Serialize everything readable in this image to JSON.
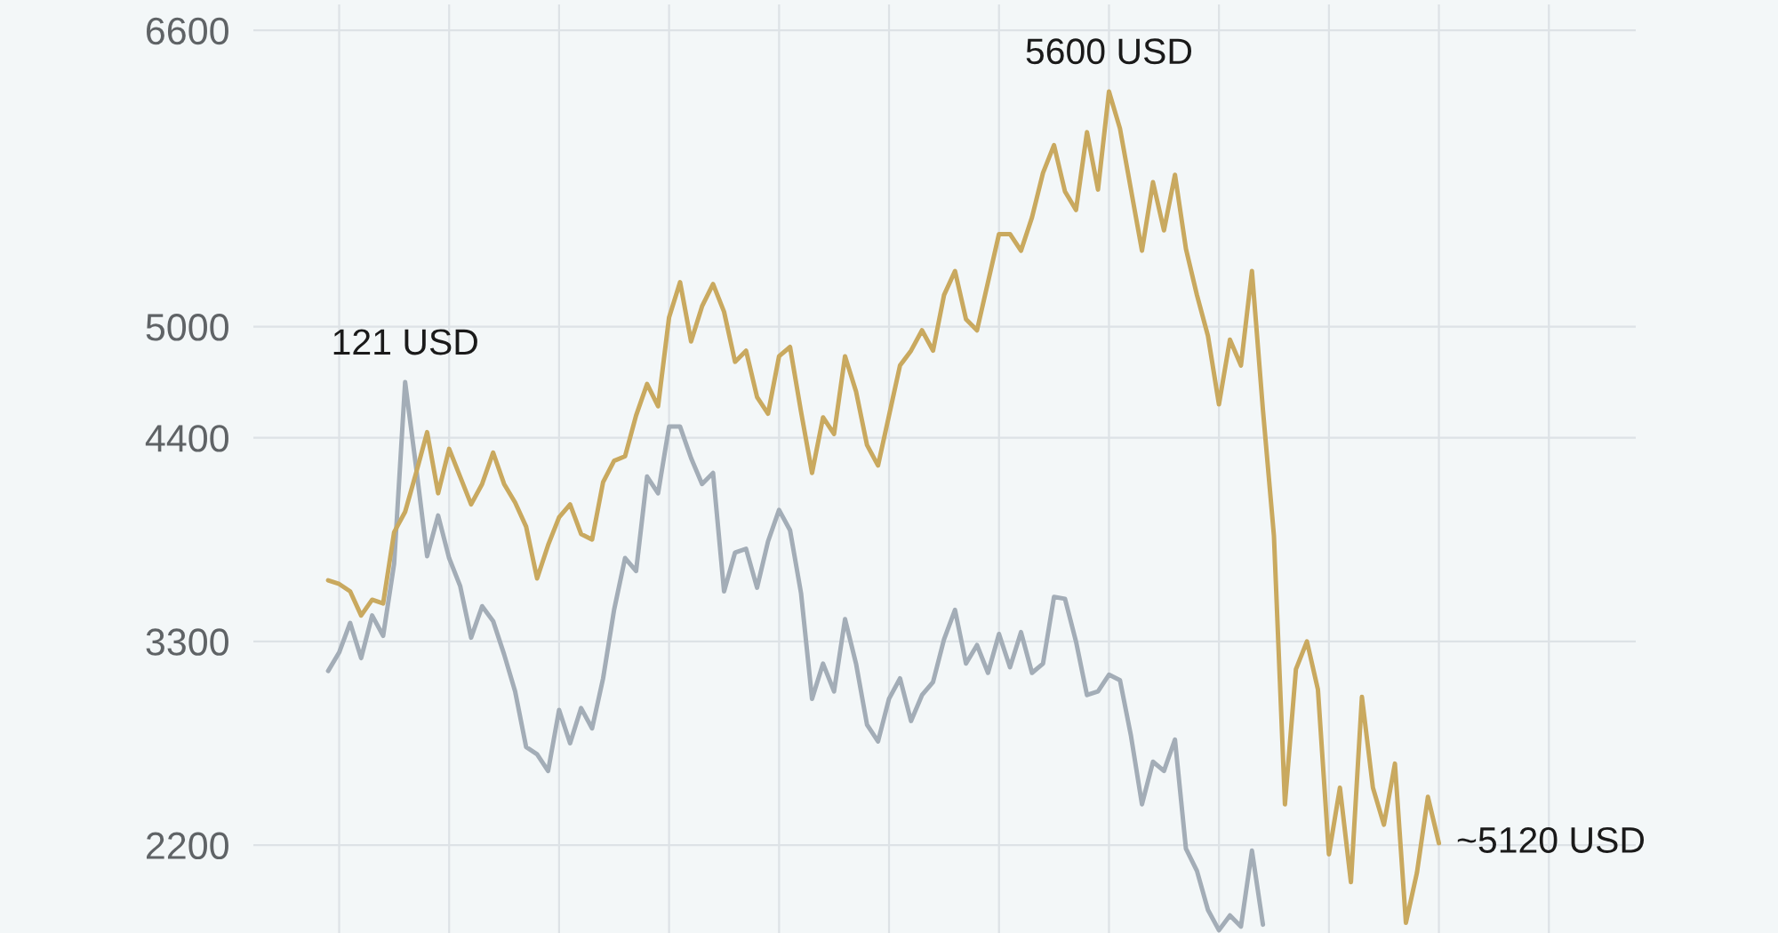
{
  "chart_data": {
    "type": "line",
    "line_style": "solid",
    "grid": true,
    "tick_labels": "y",
    "categories": [
      null,
      null,
      null,
      null,
      null,
      null,
      null,
      null,
      null,
      null,
      null,
      null,
      null,
      null,
      null,
      null,
      null,
      null,
      null,
      null,
      null,
      null,
      null,
      null,
      null,
      null,
      null,
      null,
      null,
      null,
      null,
      null,
      null,
      null,
      null,
      null,
      null,
      null,
      null,
      null,
      null,
      null,
      null,
      null,
      null,
      null,
      null,
      null,
      null,
      null,
      null,
      null,
      null,
      null,
      null,
      null,
      null,
      null,
      null,
      null,
      null,
      null,
      null,
      null,
      null,
      null,
      null,
      null,
      null,
      null,
      null,
      null,
      null,
      null,
      null,
      null,
      null,
      null,
      null,
      null,
      null,
      null,
      null,
      null,
      null,
      null,
      null,
      null,
      null,
      null,
      null,
      null,
      null,
      null,
      null,
      null,
      null,
      null,
      null,
      null,
      null,
      null
    ],
    "ylim": [
      1725,
      6740
    ],
    "yticks": [
      2200,
      3300,
      4400,
      5000,
      6600
    ],
    "annotations": [
      {
        "text": "121 USD",
        "y": 4700
      },
      {
        "text": "5600 USD",
        "y": 6270
      },
      "~5120 USD"
    ],
    "series": [
      {
        "color": "#a3adb7",
        "values": [
          3140,
          3240,
          3400,
          3210,
          3440,
          3330,
          3720,
          4700,
          4240,
          3760,
          3980,
          3750,
          3600,
          3320,
          3490,
          3410,
          3230,
          3030,
          2730,
          2690,
          2600,
          2930,
          2750,
          2940,
          2830,
          3100,
          3470,
          3750,
          3680,
          4190,
          4100,
          4460,
          4460,
          4290,
          4150,
          4210,
          3570,
          3780,
          3800,
          3590,
          3840,
          4010,
          3900,
          3560,
          2990,
          3180,
          3030,
          3420,
          3180,
          2850,
          2760,
          2990,
          3100,
          2870,
          3010,
          3080,
          3310,
          3470,
          3180,
          3280,
          3130,
          3340,
          3160,
          3350,
          3130,
          3180,
          3540,
          3530,
          3300,
          3010,
          3030,
          3120,
          3090,
          2790,
          2420,
          2650,
          2600,
          2770,
          2180,
          2060,
          1850,
          1740,
          1820,
          1760,
          2170,
          1770,
          null,
          null,
          null,
          null,
          null,
          null,
          null,
          null,
          null,
          null,
          null,
          null,
          null,
          null,
          null,
          null
        ]
      },
      {
        "color": "#c9a95f",
        "values": [
          3630,
          3610,
          3570,
          3440,
          3525,
          3505,
          3890,
          4000,
          4210,
          4430,
          4100,
          4340,
          4190,
          4040,
          4150,
          4320,
          4150,
          4050,
          3920,
          3640,
          3820,
          3970,
          4040,
          3880,
          3850,
          4160,
          4275,
          4300,
          4520,
          4690,
          4570,
          5050,
          5240,
          4920,
          5110,
          5230,
          5080,
          4810,
          4870,
          4620,
          4530,
          4840,
          4890,
          4540,
          4210,
          4510,
          4420,
          4840,
          4650,
          4360,
          4250,
          4520,
          4790,
          4870,
          4980,
          4870,
          5170,
          5300,
          5040,
          4980,
          5240,
          5500,
          5500,
          5410,
          5590,
          5830,
          5980,
          5730,
          5630,
          6050,
          5740,
          6270,
          6070,
          5740,
          5410,
          5780,
          5520,
          5820,
          5420,
          5170,
          4950,
          4580,
          4930,
          4790,
          5300,
          4550,
          3870,
          2420,
          3150,
          3300,
          3040,
          2150,
          2510,
          2000,
          3000,
          2510,
          2310,
          2640,
          1780,
          2050,
          2460,
          2210
        ]
      }
    ]
  }
}
